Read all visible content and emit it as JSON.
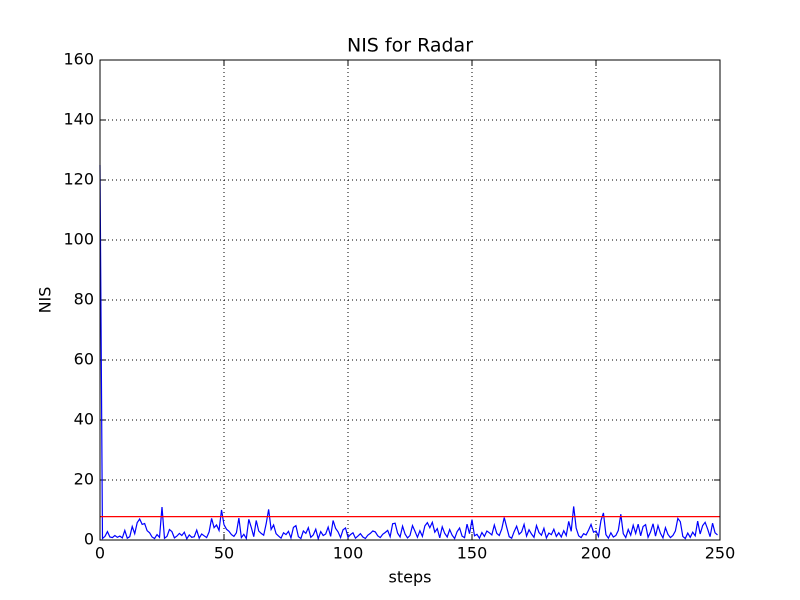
{
  "chart_data": {
    "type": "line",
    "title": "NIS for Radar",
    "xlabel": "steps",
    "ylabel": "NIS",
    "xlim": [
      0,
      250
    ],
    "ylim": [
      0,
      160
    ],
    "xticks": [
      0,
      50,
      100,
      150,
      200,
      250
    ],
    "yticks": [
      0,
      20,
      40,
      60,
      80,
      100,
      120,
      140,
      160
    ],
    "grid": true,
    "series": [
      {
        "color": "#0000ff",
        "x": [
          0,
          1,
          2,
          3,
          4,
          5,
          6,
          7,
          8,
          9,
          10,
          11,
          12,
          13,
          14,
          15,
          16,
          17,
          18,
          19,
          20,
          21,
          22,
          23,
          24,
          25,
          26,
          27,
          28,
          29,
          30,
          31,
          32,
          33,
          34,
          35,
          36,
          37,
          38,
          39,
          40,
          41,
          42,
          43,
          44,
          45,
          46,
          47,
          48,
          49,
          50,
          51,
          52,
          53,
          54,
          55,
          56,
          57,
          58,
          59,
          60,
          61,
          62,
          63,
          64,
          65,
          66,
          67,
          68,
          69,
          70,
          71,
          72,
          73,
          74,
          75,
          76,
          77,
          78,
          79,
          80,
          81,
          82,
          83,
          84,
          85,
          86,
          87,
          88,
          89,
          90,
          91,
          92,
          93,
          94,
          95,
          96,
          97,
          98,
          99,
          100,
          101,
          102,
          103,
          104,
          105,
          106,
          107,
          108,
          109,
          110,
          111,
          112,
          113,
          114,
          115,
          116,
          117,
          118,
          119,
          120,
          121,
          122,
          123,
          124,
          125,
          126,
          127,
          128,
          129,
          130,
          131,
          132,
          133,
          134,
          135,
          136,
          137,
          138,
          139,
          140,
          141,
          142,
          143,
          144,
          145,
          146,
          147,
          148,
          149,
          150,
          151,
          152,
          153,
          154,
          155,
          156,
          157,
          158,
          159,
          160,
          161,
          162,
          163,
          164,
          165,
          166,
          167,
          168,
          169,
          170,
          171,
          172,
          173,
          174,
          175,
          176,
          177,
          178,
          179,
          180,
          181,
          182,
          183,
          184,
          185,
          186,
          187,
          188,
          189,
          190,
          191,
          192,
          193,
          194,
          195,
          196,
          197,
          198,
          199,
          200,
          201,
          202,
          203,
          204,
          205,
          206,
          207,
          208,
          209,
          210,
          211,
          212,
          213,
          214,
          215,
          216,
          217,
          218,
          219,
          220,
          221,
          222,
          223,
          224,
          225,
          226,
          227,
          228,
          229,
          230,
          231,
          232,
          233,
          234,
          235,
          236,
          237,
          238,
          239,
          240,
          241,
          242,
          243,
          244,
          245,
          246,
          247,
          248,
          249
        ],
        "values": [
          125,
          0.5,
          1.2,
          2.8,
          1.0,
          0.8,
          1.5,
          0.9,
          1.3,
          0.7,
          3.2,
          0.6,
          1.1,
          4.5,
          2.1,
          5.8,
          7.0,
          5.2,
          5.5,
          3.1,
          2.4,
          1.0,
          0.5,
          1.8,
          0.9,
          11.0,
          0.6,
          1.2,
          3.5,
          2.8,
          0.7,
          1.3,
          2.2,
          1.5,
          2.6,
          0.4,
          1.7,
          0.9,
          1.1,
          3.3,
          0.6,
          2.0,
          1.4,
          0.8,
          2.7,
          7.2,
          4.1,
          5.0,
          3.2,
          10.0,
          5.1,
          3.6,
          2.9,
          1.8,
          1.2,
          2.4,
          7.3,
          0.8,
          1.9,
          0.5,
          6.9,
          4.2,
          1.1,
          6.5,
          3.0,
          2.2,
          1.6,
          5.4,
          10.2,
          3.5,
          5.0,
          2.1,
          1.3,
          0.6,
          2.4,
          1.8,
          2.9,
          0.7,
          4.2,
          4.8,
          1.1,
          0.5,
          3.0,
          2.2,
          4.1,
          0.9,
          1.7,
          3.6,
          0.4,
          2.8,
          1.5,
          2.0,
          4.3,
          1.2,
          6.5,
          3.9,
          2.7,
          0.8,
          3.4,
          4.0,
          0.9,
          1.8,
          2.4,
          0.6,
          1.3,
          2.1,
          1.0,
          0.5,
          1.6,
          2.2,
          3.0,
          2.7,
          1.4,
          0.8,
          1.9,
          2.5,
          3.2,
          1.1,
          5.4,
          5.6,
          2.3,
          1.0,
          4.6,
          2.0,
          0.7,
          1.5,
          4.8,
          2.9,
          0.9,
          3.1,
          1.2,
          4.7,
          5.8,
          4.1,
          5.9,
          2.6,
          3.8,
          0.7,
          4.4,
          2.2,
          1.0,
          3.5,
          1.6,
          0.5,
          2.8,
          4.0,
          1.3,
          0.8,
          5.3,
          2.1,
          6.8,
          1.4,
          1.9,
          0.6,
          2.5,
          1.2,
          3.0,
          2.4,
          1.7,
          5.0,
          2.2,
          1.5,
          3.7,
          7.5,
          4.2,
          1.1,
          0.6,
          2.8,
          4.6,
          1.9,
          2.7,
          5.2,
          1.3,
          3.4,
          2.0,
          0.9,
          4.8,
          2.5,
          1.6,
          3.9,
          0.7,
          2.3,
          1.8,
          3.6,
          1.2,
          2.4,
          1.0,
          3.1,
          1.5,
          6.2,
          2.9,
          11.2,
          4.0,
          1.4,
          0.8,
          2.1,
          1.7,
          3.3,
          5.2,
          2.6,
          3.0,
          1.2,
          6.5,
          9.0,
          1.8,
          0.6,
          2.4,
          1.0,
          1.5,
          3.2,
          8.6,
          2.1,
          0.8,
          3.5,
          1.6,
          4.9,
          2.2,
          5.3,
          1.4,
          4.5,
          5.1,
          0.9,
          2.7,
          5.4,
          1.3,
          4.8,
          2.2,
          0.7,
          4.1,
          1.9,
          0.8,
          1.5,
          3.0,
          7.2,
          6.1,
          1.2,
          0.5,
          2.3,
          0.9,
          2.6,
          1.4,
          6.3,
          2.0,
          4.8,
          5.9,
          3.7,
          1.1,
          5.6,
          2.4,
          1.7
        ]
      },
      {
        "color": "#ff0000",
        "x": [
          0,
          250
        ],
        "values": [
          7.8,
          7.8
        ]
      }
    ]
  }
}
